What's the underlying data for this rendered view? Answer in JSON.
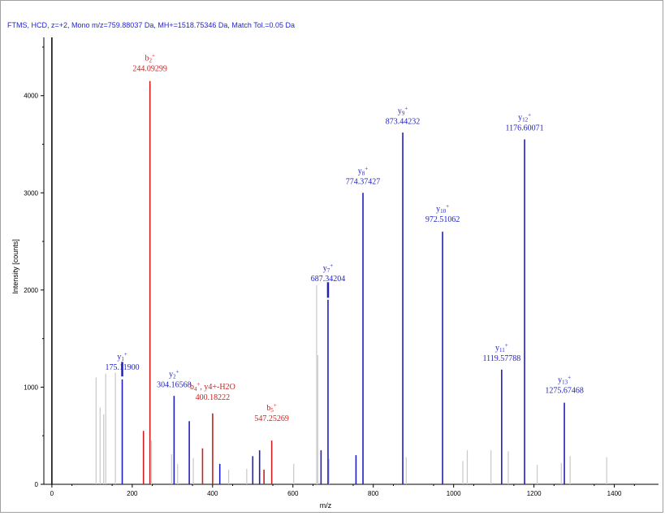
{
  "header_text": "FTMS, HCD, z=+2, Mono m/z=759.88037 Da, MH+=1518.75346 Da, Match Tol.=0.05 Da",
  "colors": {
    "header": "#1f1fd6",
    "b_ion": "#cc1f1f",
    "y_ion": "#1f1fbf",
    "other": "#c8c8c8",
    "axis": "#000000"
  },
  "chart_data": {
    "type": "bar",
    "title": "",
    "xlabel": "m/z",
    "ylabel": "Intensity [counts]",
    "xlim": [
      -20,
      1510
    ],
    "ylim": [
      0,
      4600
    ],
    "xticks": [
      "0",
      "200",
      "400",
      "600",
      "800",
      "1000",
      "1200",
      "1400"
    ],
    "yticks": [
      "0",
      "1000",
      "2000",
      "3000",
      "4000"
    ],
    "series": [
      {
        "name": "b",
        "color": "#cc1f1f",
        "points": [
          {
            "x": 228,
            "y": 550
          },
          {
            "x": 244.09299,
            "y": 4150
          },
          {
            "x": 375,
            "y": 370
          },
          {
            "x": 400.18222,
            "y": 730
          },
          {
            "x": 528,
            "y": 150
          },
          {
            "x": 547.25269,
            "y": 450
          }
        ]
      },
      {
        "name": "y",
        "color": "#1f1fbf",
        "points": [
          {
            "x": 175.119,
            "y": 1080
          },
          {
            "x": 304.16568,
            "y": 910
          },
          {
            "x": 342,
            "y": 650
          },
          {
            "x": 418,
            "y": 210
          },
          {
            "x": 500,
            "y": 290
          },
          {
            "x": 517,
            "y": 350
          },
          {
            "x": 670,
            "y": 350
          },
          {
            "x": 687.34204,
            "y": 1900
          },
          {
            "x": 757,
            "y": 300
          },
          {
            "x": 774.37427,
            "y": 3000
          },
          {
            "x": 873.44232,
            "y": 3620
          },
          {
            "x": 972.51062,
            "y": 2600
          },
          {
            "x": 1119.57788,
            "y": 1180
          },
          {
            "x": 1176.60071,
            "y": 3550
          },
          {
            "x": 1275.67468,
            "y": 840
          }
        ]
      },
      {
        "name": "other",
        "color": "#c8c8c8",
        "points": [
          {
            "x": 110,
            "y": 1100
          },
          {
            "x": 120,
            "y": 790
          },
          {
            "x": 129,
            "y": 720
          },
          {
            "x": 134,
            "y": 1140
          },
          {
            "x": 158,
            "y": 1150
          },
          {
            "x": 248,
            "y": 450
          },
          {
            "x": 298,
            "y": 310
          },
          {
            "x": 313,
            "y": 210
          },
          {
            "x": 352,
            "y": 270
          },
          {
            "x": 440,
            "y": 150
          },
          {
            "x": 485,
            "y": 160
          },
          {
            "x": 602,
            "y": 210
          },
          {
            "x": 659,
            "y": 2050
          },
          {
            "x": 662,
            "y": 1330
          },
          {
            "x": 690,
            "y": 260
          },
          {
            "x": 882,
            "y": 280
          },
          {
            "x": 1023,
            "y": 240
          },
          {
            "x": 1034,
            "y": 350
          },
          {
            "x": 1093,
            "y": 350
          },
          {
            "x": 1136,
            "y": 340
          },
          {
            "x": 1208,
            "y": 200
          },
          {
            "x": 1268,
            "y": 220
          },
          {
            "x": 1290,
            "y": 290
          },
          {
            "x": 1381,
            "y": 280
          }
        ]
      }
    ],
    "annotations": [
      {
        "ion": "b",
        "sub": "2",
        "sup": "+",
        "extra": "",
        "mz": "244.09299",
        "color": "#cc1f1f",
        "x": 244.09299,
        "ylabel": 4360,
        "link": null
      },
      {
        "ion": "y",
        "sub": "1",
        "sup": "+",
        "extra": "",
        "mz": "175.11900",
        "color": "#1f1fbf",
        "x": 175.119,
        "ylabel": 1290,
        "link": [
          1110,
          1260
        ]
      },
      {
        "ion": "y",
        "sub": "2",
        "sup": "+",
        "extra": "",
        "mz": "304.16568",
        "color": "#1f1fbf",
        "x": 304.16568,
        "ylabel": 1110,
        "link": null
      },
      {
        "ion": "b",
        "sub": "4",
        "sup": "+",
        "extra": ", y4+-H2O",
        "mz": "400.18222",
        "color": "#cc1f1f",
        "x": 400.18222,
        "ylabel": 980,
        "link": null
      },
      {
        "ion": "b",
        "sub": "5",
        "sup": "+",
        "extra": "",
        "mz": "547.25269",
        "color": "#cc1f1f",
        "x": 547.25269,
        "ylabel": 760,
        "link": null
      },
      {
        "ion": "y",
        "sub": "7",
        "sup": "+",
        "extra": "",
        "mz": "687.34204",
        "color": "#1f1fbf",
        "x": 687.34204,
        "ylabel": 2200,
        "link": [
          1920,
          2080
        ]
      },
      {
        "ion": "y",
        "sub": "8",
        "sup": "+",
        "extra": "",
        "mz": "774.37427",
        "color": "#1f1fbf",
        "x": 774.37427,
        "ylabel": 3200,
        "link": null
      },
      {
        "ion": "y",
        "sub": "9",
        "sup": "+",
        "extra": "",
        "mz": "873.44232",
        "color": "#1f1fbf",
        "x": 873.44232,
        "ylabel": 3820,
        "link": null
      },
      {
        "ion": "y",
        "sub": "10",
        "sup": "+",
        "extra": "",
        "mz": "972.51062",
        "color": "#1f1fbf",
        "x": 972.51062,
        "ylabel": 2810,
        "link": null
      },
      {
        "ion": "y",
        "sub": "11",
        "sup": "+",
        "extra": "",
        "mz": "1119.57788",
        "color": "#1f1fbf",
        "x": 1119.57788,
        "ylabel": 1380,
        "link": null
      },
      {
        "ion": "y",
        "sub": "12",
        "sup": "+",
        "extra": "",
        "mz": "1176.60071",
        "color": "#1f1fbf",
        "x": 1176.60071,
        "ylabel": 3750,
        "link": null
      },
      {
        "ion": "y",
        "sub": "13",
        "sup": "+",
        "extra": "",
        "mz": "1275.67468",
        "color": "#1f1fbf",
        "x": 1275.67468,
        "ylabel": 1050,
        "link": null
      }
    ]
  }
}
